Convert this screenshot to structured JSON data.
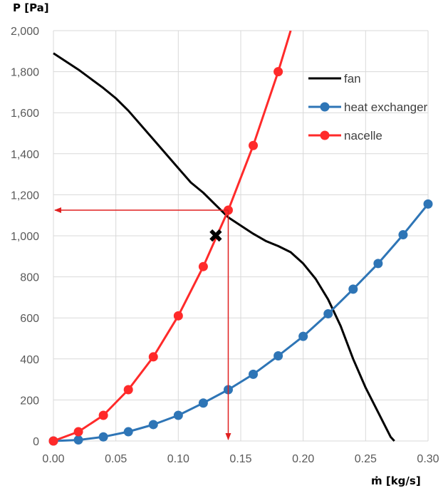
{
  "chart_data": {
    "type": "line",
    "ylabel": "P [Pa]",
    "xlabel": "ṁ [kg/s]",
    "xlim": [
      0,
      0.3
    ],
    "ylim": [
      0,
      2000
    ],
    "x_ticks": [
      "0.00",
      "0.05",
      "0.10",
      "0.15",
      "0.20",
      "0.25",
      "0.30"
    ],
    "y_ticks": [
      "0",
      "200",
      "400",
      "600",
      "800",
      "1,000",
      "1,200",
      "1,400",
      "1,600",
      "1,800",
      "2,000"
    ],
    "x_tick_values": [
      0,
      0.05,
      0.1,
      0.15,
      0.2,
      0.25,
      0.3
    ],
    "y_tick_values": [
      0,
      200,
      400,
      600,
      800,
      1000,
      1200,
      1400,
      1600,
      1800,
      2000
    ],
    "grid": true,
    "legend_position": "top-right",
    "series": [
      {
        "name": "fan",
        "color": "#000000",
        "markers": false,
        "points": [
          [
            0,
            1890
          ],
          [
            0.02,
            1810
          ],
          [
            0.04,
            1720
          ],
          [
            0.05,
            1670
          ],
          [
            0.06,
            1610
          ],
          [
            0.08,
            1470
          ],
          [
            0.1,
            1330
          ],
          [
            0.11,
            1260
          ],
          [
            0.12,
            1210
          ],
          [
            0.13,
            1150
          ],
          [
            0.14,
            1090
          ],
          [
            0.15,
            1050
          ],
          [
            0.16,
            1010
          ],
          [
            0.17,
            975
          ],
          [
            0.18,
            950
          ],
          [
            0.19,
            920
          ],
          [
            0.2,
            865
          ],
          [
            0.21,
            790
          ],
          [
            0.22,
            690
          ],
          [
            0.23,
            560
          ],
          [
            0.24,
            400
          ],
          [
            0.25,
            260
          ],
          [
            0.26,
            140
          ],
          [
            0.27,
            20
          ],
          [
            0.273,
            0
          ]
        ]
      },
      {
        "name": "heat exchanger",
        "color": "#2e75b6",
        "markers": true,
        "points": [
          [
            0,
            0
          ],
          [
            0.02,
            5
          ],
          [
            0.04,
            20
          ],
          [
            0.06,
            45
          ],
          [
            0.08,
            80
          ],
          [
            0.1,
            125
          ],
          [
            0.12,
            185
          ],
          [
            0.14,
            250
          ],
          [
            0.16,
            325
          ],
          [
            0.18,
            415
          ],
          [
            0.2,
            510
          ],
          [
            0.22,
            620
          ],
          [
            0.24,
            740
          ],
          [
            0.26,
            865
          ],
          [
            0.28,
            1005
          ],
          [
            0.3,
            1155
          ]
        ]
      },
      {
        "name": "nacelle",
        "color": "#ff2a2a",
        "markers": true,
        "points": [
          [
            0,
            0
          ],
          [
            0.02,
            45
          ],
          [
            0.04,
            125
          ],
          [
            0.06,
            250
          ],
          [
            0.08,
            410
          ],
          [
            0.1,
            610
          ],
          [
            0.12,
            850
          ],
          [
            0.14,
            1125
          ],
          [
            0.16,
            1440
          ],
          [
            0.18,
            1800
          ],
          [
            0.19,
            2000
          ]
        ]
      }
    ],
    "annotations": {
      "operating_point": {
        "x": 0.14,
        "y": 1125
      },
      "arrow_color": "#e02020",
      "design_point_marker": {
        "x": 0.13,
        "y": 1000,
        "symbol": "✖"
      }
    }
  }
}
